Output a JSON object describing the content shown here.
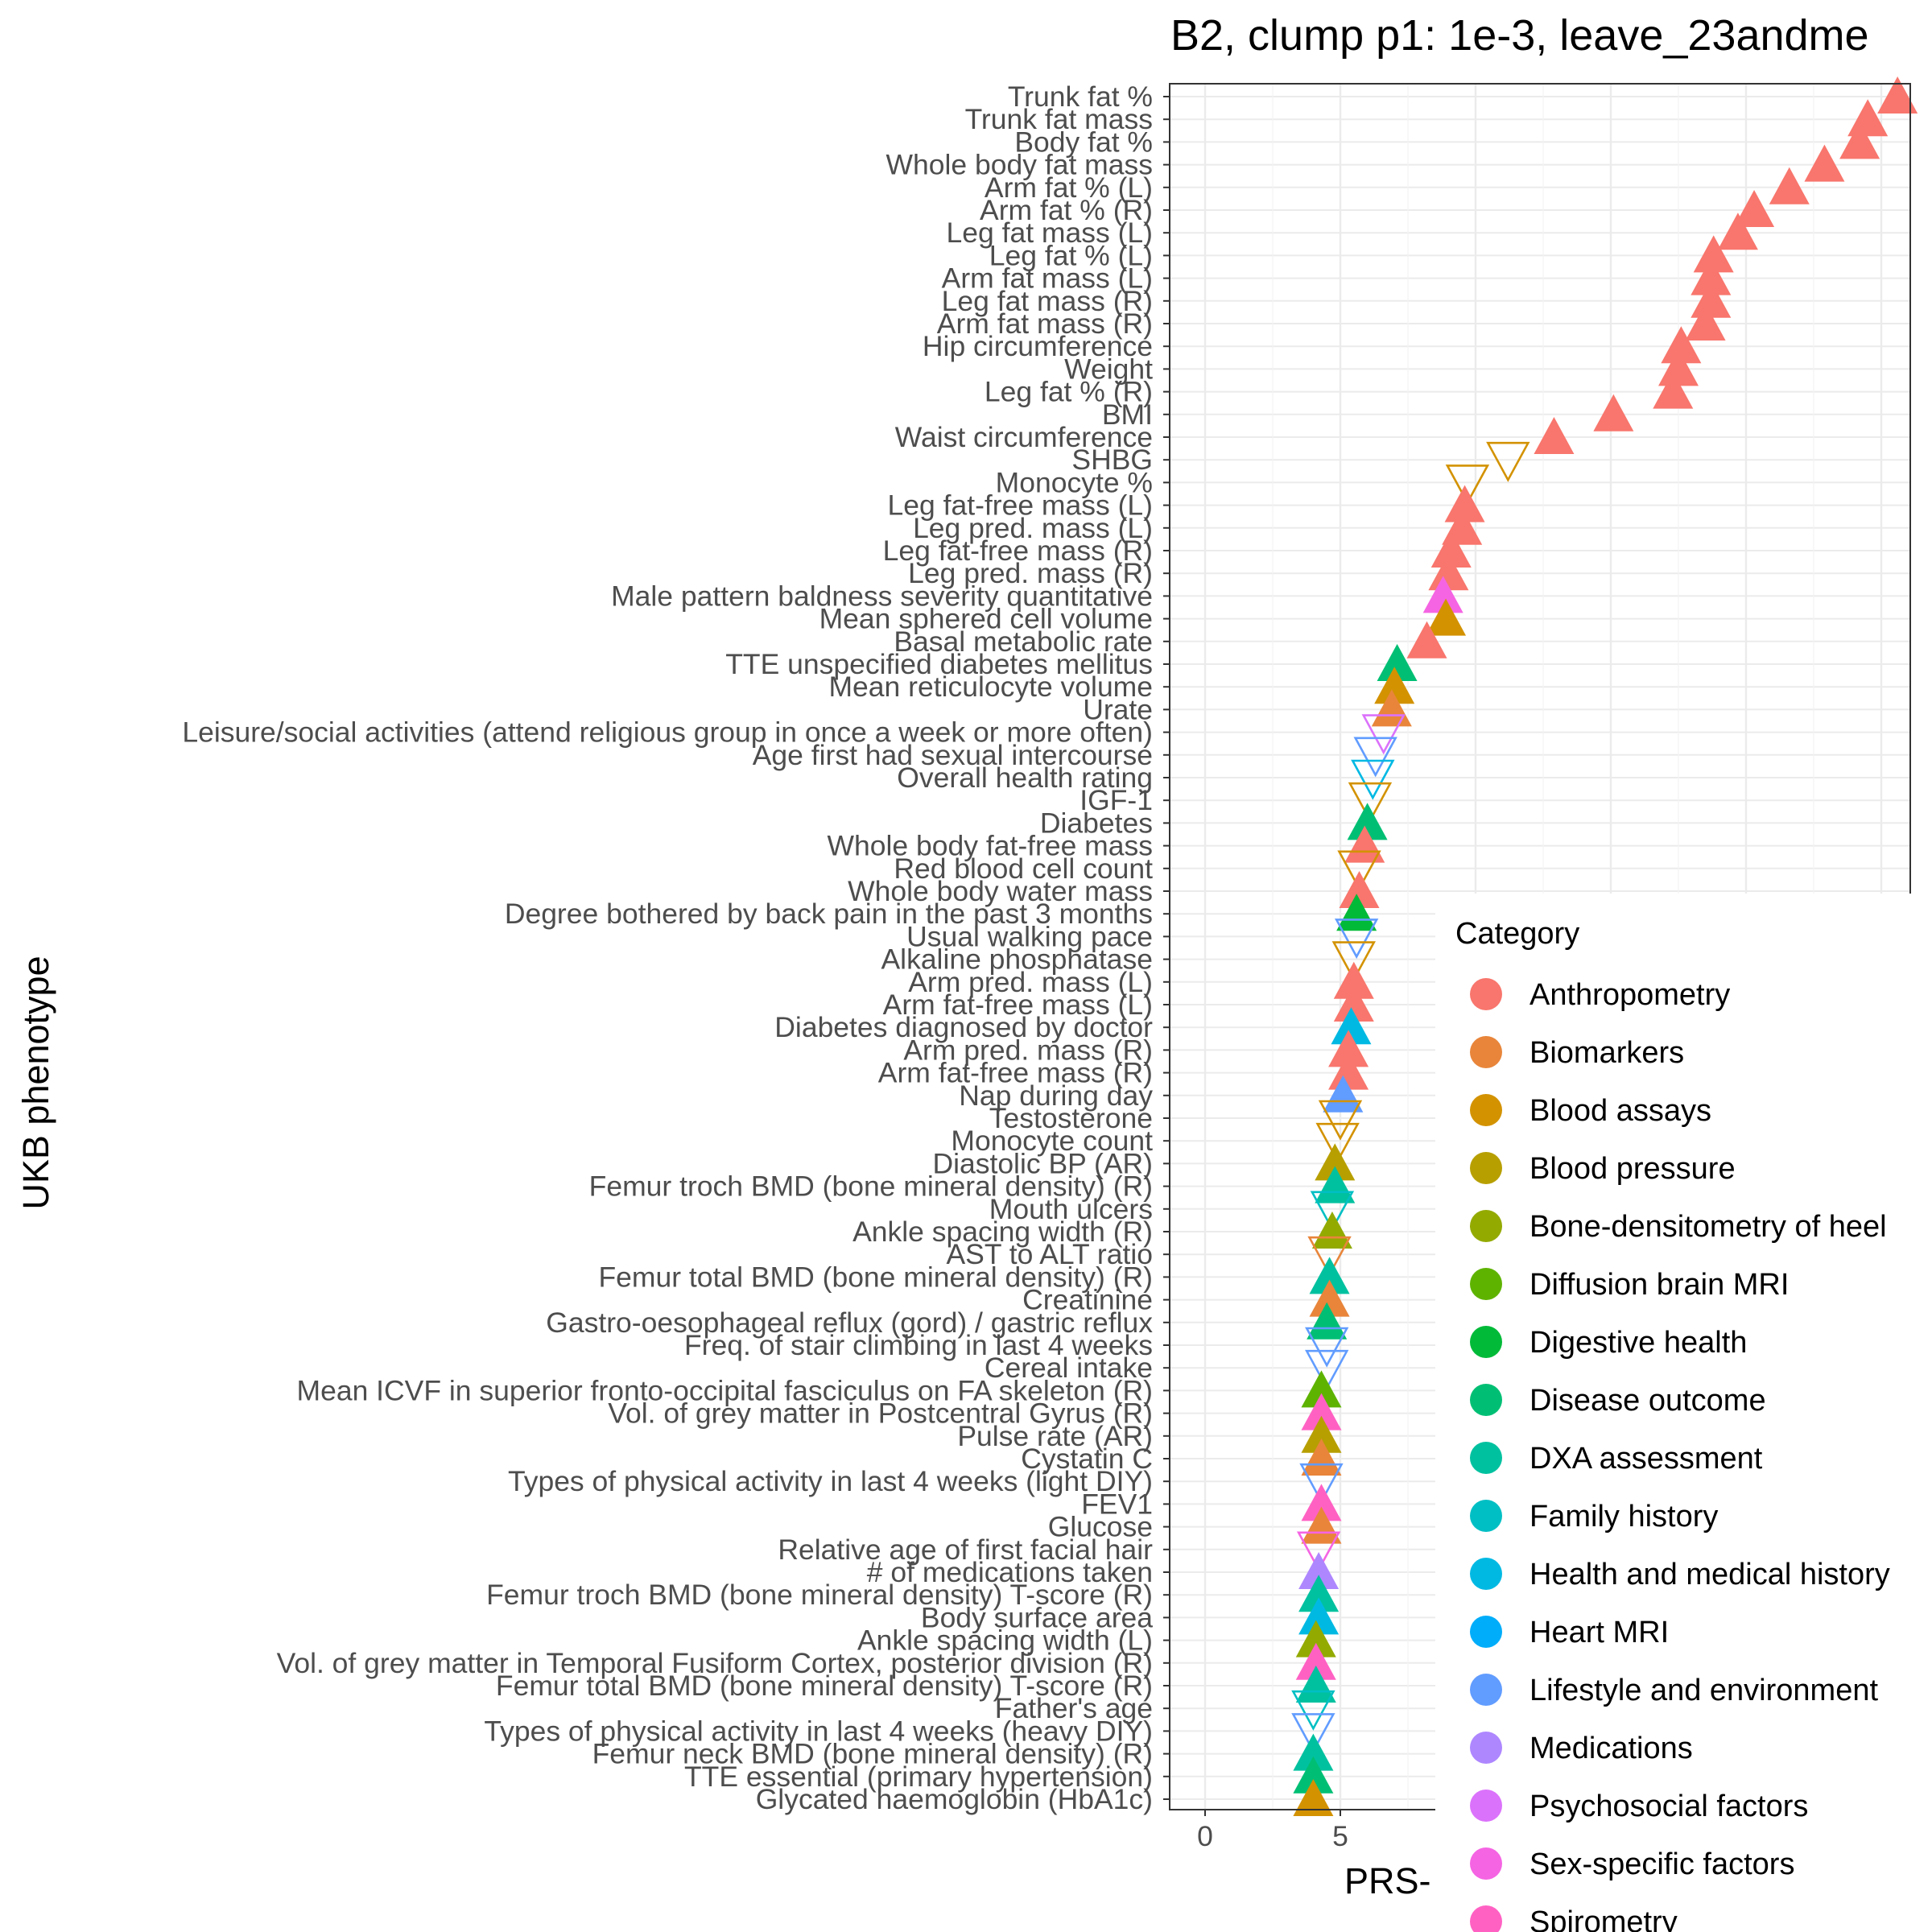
{
  "chart_data": {
    "type": "scatter",
    "title": "B2, clump p1: 1e-3, leave_23andme",
    "xlabel": "PRS-",
    "ylabel": "UKB phenotype",
    "x_ticks": [
      0,
      5
    ],
    "xlim": [
      -1.2,
      26
    ],
    "grid": true,
    "legend_position": "right",
    "legend": {
      "title": "Category",
      "items": [
        {
          "label": "Anthropometry",
          "color": "#F8766D"
        },
        {
          "label": "Biomarkers",
          "color": "#E8853A"
        },
        {
          "label": "Blood assays",
          "color": "#D39200"
        },
        {
          "label": "Blood pressure",
          "color": "#B79F00"
        },
        {
          "label": "Bone-densitometry of heel",
          "color": "#93AA00"
        },
        {
          "label": "Diffusion brain MRI",
          "color": "#5EB300"
        },
        {
          "label": "Digestive health",
          "color": "#00BA38"
        },
        {
          "label": "Disease outcome",
          "color": "#00BF74"
        },
        {
          "label": "DXA assessment",
          "color": "#00C19F"
        },
        {
          "label": "Family history",
          "color": "#00BFC4"
        },
        {
          "label": "Health and medical history",
          "color": "#00B9E3"
        },
        {
          "label": "Heart MRI",
          "color": "#00ADFA"
        },
        {
          "label": "Lifestyle and environment",
          "color": "#619CFF"
        },
        {
          "label": "Medications",
          "color": "#AE87FF"
        },
        {
          "label": "Psychosocial factors",
          "color": "#DB72FB"
        },
        {
          "label": "Sex-specific factors",
          "color": "#F564E3"
        },
        {
          "label": "Spirometry",
          "color": "#FF61C3"
        }
      ]
    },
    "points": [
      {
        "label": "Trunk fat %",
        "x": 25.6,
        "category": "Anthropometry",
        "direction": "up"
      },
      {
        "label": "Trunk fat mass",
        "x": 24.5,
        "category": "Anthropometry",
        "direction": "up"
      },
      {
        "label": "Body fat %",
        "x": 24.2,
        "category": "Anthropometry",
        "direction": "up"
      },
      {
        "label": "Whole body fat mass",
        "x": 22.9,
        "category": "Anthropometry",
        "direction": "up"
      },
      {
        "label": "Arm fat % (L)",
        "x": 21.6,
        "category": "Anthropometry",
        "direction": "up"
      },
      {
        "label": "Arm fat % (R)",
        "x": 20.3,
        "category": "Anthropometry",
        "direction": "up"
      },
      {
        "label": "Leg fat mass (L)",
        "x": 19.7,
        "category": "Anthropometry",
        "direction": "up"
      },
      {
        "label": "Leg fat % (L)",
        "x": 18.8,
        "category": "Anthropometry",
        "direction": "up"
      },
      {
        "label": "Arm fat mass (L)",
        "x": 18.7,
        "category": "Anthropometry",
        "direction": "up"
      },
      {
        "label": "Leg fat mass (R)",
        "x": 18.7,
        "category": "Anthropometry",
        "direction": "up"
      },
      {
        "label": "Arm fat mass (R)",
        "x": 18.5,
        "category": "Anthropometry",
        "direction": "up"
      },
      {
        "label": "Hip circumference",
        "x": 17.6,
        "category": "Anthropometry",
        "direction": "up"
      },
      {
        "label": "Weight",
        "x": 17.5,
        "category": "Anthropometry",
        "direction": "up"
      },
      {
        "label": "Leg fat % (R)",
        "x": 17.3,
        "category": "Anthropometry",
        "direction": "up"
      },
      {
        "label": "BMI",
        "x": 15.1,
        "category": "Anthropometry",
        "direction": "up"
      },
      {
        "label": "Waist circumference",
        "x": 12.9,
        "category": "Anthropometry",
        "direction": "up"
      },
      {
        "label": "SHBG",
        "x": 11.2,
        "category": "Blood assays",
        "direction": "down"
      },
      {
        "label": "Monocyte %",
        "x": 9.7,
        "category": "Blood assays",
        "direction": "down"
      },
      {
        "label": "Leg fat-free mass (L)",
        "x": 9.6,
        "category": "Anthropometry",
        "direction": "up"
      },
      {
        "label": "Leg pred. mass (L)",
        "x": 9.5,
        "category": "Anthropometry",
        "direction": "up"
      },
      {
        "label": "Leg fat-free mass (R)",
        "x": 9.1,
        "category": "Anthropometry",
        "direction": "up"
      },
      {
        "label": "Leg pred. mass (R)",
        "x": 9.0,
        "category": "Anthropometry",
        "direction": "up"
      },
      {
        "label": "Male pattern baldness severity quantitative",
        "x": 8.8,
        "category": "Sex-specific factors",
        "direction": "up"
      },
      {
        "label": "Mean sphered cell volume",
        "x": 8.9,
        "category": "Blood assays",
        "direction": "up"
      },
      {
        "label": "Basal metabolic rate",
        "x": 8.2,
        "category": "Anthropometry",
        "direction": "up"
      },
      {
        "label": "TTE unspecified diabetes mellitus",
        "x": 7.1,
        "category": "Disease outcome",
        "direction": "up"
      },
      {
        "label": "Mean reticulocyte volume",
        "x": 7.0,
        "category": "Blood assays",
        "direction": "up"
      },
      {
        "label": "Urate",
        "x": 6.9,
        "category": "Biomarkers",
        "direction": "up"
      },
      {
        "label": "Leisure/social activities (attend religious group in once a week or more often)",
        "x": 6.6,
        "category": "Psychosocial factors",
        "direction": "down"
      },
      {
        "label": "Age first had sexual intercourse",
        "x": 6.3,
        "category": "Lifestyle and environment",
        "direction": "down"
      },
      {
        "label": "Overall health rating",
        "x": 6.2,
        "category": "Health and medical history",
        "direction": "down"
      },
      {
        "label": "IGF-1",
        "x": 6.1,
        "category": "Blood assays",
        "direction": "down"
      },
      {
        "label": "Diabetes",
        "x": 6.0,
        "category": "Disease outcome",
        "direction": "up"
      },
      {
        "label": "Whole body fat-free mass",
        "x": 5.9,
        "category": "Anthropometry",
        "direction": "up"
      },
      {
        "label": "Red blood cell count",
        "x": 5.7,
        "category": "Blood assays",
        "direction": "down"
      },
      {
        "label": "Whole body water mass",
        "x": 5.7,
        "category": "Anthropometry",
        "direction": "up"
      },
      {
        "label": "Degree bothered by back pain in the past 3 months",
        "x": 5.6,
        "category": "Digestive health",
        "direction": "up"
      },
      {
        "label": "Usual walking pace",
        "x": 5.6,
        "category": "Lifestyle and environment",
        "direction": "down"
      },
      {
        "label": "Alkaline phosphatase",
        "x": 5.5,
        "category": "Blood assays",
        "direction": "down"
      },
      {
        "label": "Arm pred. mass (L)",
        "x": 5.5,
        "category": "Anthropometry",
        "direction": "up"
      },
      {
        "label": "Arm fat-free mass (L)",
        "x": 5.5,
        "category": "Anthropometry",
        "direction": "up"
      },
      {
        "label": "Diabetes diagnosed by doctor",
        "x": 5.4,
        "category": "Health and medical history",
        "direction": "up"
      },
      {
        "label": "Arm pred. mass (R)",
        "x": 5.3,
        "category": "Anthropometry",
        "direction": "up"
      },
      {
        "label": "Arm fat-free mass (R)",
        "x": 5.3,
        "category": "Anthropometry",
        "direction": "up"
      },
      {
        "label": "Nap during day",
        "x": 5.1,
        "category": "Lifestyle and environment",
        "direction": "up"
      },
      {
        "label": "Testosterone",
        "x": 5.0,
        "category": "Blood assays",
        "direction": "down"
      },
      {
        "label": "Monocyte count",
        "x": 4.9,
        "category": "Blood assays",
        "direction": "down"
      },
      {
        "label": "Diastolic BP (AR)",
        "x": 4.8,
        "category": "Blood pressure",
        "direction": "up"
      },
      {
        "label": "Femur troch BMD (bone mineral density) (R)",
        "x": 4.8,
        "category": "DXA assessment",
        "direction": "up"
      },
      {
        "label": "Mouth ulcers",
        "x": 4.7,
        "category": "Family history",
        "direction": "down"
      },
      {
        "label": "Ankle spacing width (R)",
        "x": 4.7,
        "category": "Bone-densitometry of heel",
        "direction": "up"
      },
      {
        "label": "AST to ALT ratio",
        "x": 4.6,
        "category": "Biomarkers",
        "direction": "down"
      },
      {
        "label": "Femur total BMD (bone mineral density) (R)",
        "x": 4.6,
        "category": "DXA assessment",
        "direction": "up"
      },
      {
        "label": "Creatinine",
        "x": 4.6,
        "category": "Biomarkers",
        "direction": "up"
      },
      {
        "label": "Gastro-oesophageal reflux (gord) / gastric reflux",
        "x": 4.5,
        "category": "Disease outcome",
        "direction": "up"
      },
      {
        "label": "Freq. of stair climbing in last 4 weeks",
        "x": 4.5,
        "category": "Lifestyle and environment",
        "direction": "down"
      },
      {
        "label": "Cereal intake",
        "x": 4.5,
        "category": "Lifestyle and environment",
        "direction": "down"
      },
      {
        "label": "Mean ICVF in superior fronto-occipital fasciculus on FA skeleton (R)",
        "x": 4.3,
        "category": "Diffusion brain MRI",
        "direction": "up"
      },
      {
        "label": "Vol. of grey matter in Postcentral Gyrus (R)",
        "x": 4.3,
        "category": "Spirometry",
        "direction": "up"
      },
      {
        "label": "Pulse rate (AR)",
        "x": 4.3,
        "category": "Blood pressure",
        "direction": "up"
      },
      {
        "label": "Cystatin C",
        "x": 4.3,
        "category": "Biomarkers",
        "direction": "up"
      },
      {
        "label": "Types of physical activity in last 4 weeks (light DIY)",
        "x": 4.3,
        "category": "Lifestyle and environment",
        "direction": "down"
      },
      {
        "label": "FEV1",
        "x": 4.3,
        "category": "Spirometry",
        "direction": "up"
      },
      {
        "label": "Glucose",
        "x": 4.3,
        "category": "Biomarkers",
        "direction": "up"
      },
      {
        "label": "Relative age of first facial hair",
        "x": 4.2,
        "category": "Sex-specific factors",
        "direction": "down"
      },
      {
        "label": "# of medications taken",
        "x": 4.2,
        "category": "Medications",
        "direction": "up"
      },
      {
        "label": "Femur troch BMD (bone mineral density) T-score (R)",
        "x": 4.2,
        "category": "DXA assessment",
        "direction": "up"
      },
      {
        "label": "Body surface area",
        "x": 4.2,
        "category": "Health and medical history",
        "direction": "up"
      },
      {
        "label": "Ankle spacing width (L)",
        "x": 4.1,
        "category": "Bone-densitometry of heel",
        "direction": "up"
      },
      {
        "label": "Vol. of grey matter in Temporal Fusiform Cortex, posterior division (R)",
        "x": 4.1,
        "category": "Spirometry",
        "direction": "up"
      },
      {
        "label": "Femur total BMD (bone mineral density) T-score (R)",
        "x": 4.1,
        "category": "DXA assessment",
        "direction": "up"
      },
      {
        "label": "Father's age",
        "x": 4.0,
        "category": "Family history",
        "direction": "down"
      },
      {
        "label": "Types of physical activity in last 4 weeks (heavy DIY)",
        "x": 4.0,
        "category": "Lifestyle and environment",
        "direction": "down"
      },
      {
        "label": "Femur neck BMD (bone mineral density) (R)",
        "x": 4.0,
        "category": "DXA assessment",
        "direction": "up"
      },
      {
        "label": "TTE essential (primary hypertension)",
        "x": 4.0,
        "category": "Disease outcome",
        "direction": "up"
      },
      {
        "label": "Glycated haemoglobin (HbA1c)",
        "x": 4.0,
        "category": "Blood assays",
        "direction": "up"
      }
    ]
  }
}
